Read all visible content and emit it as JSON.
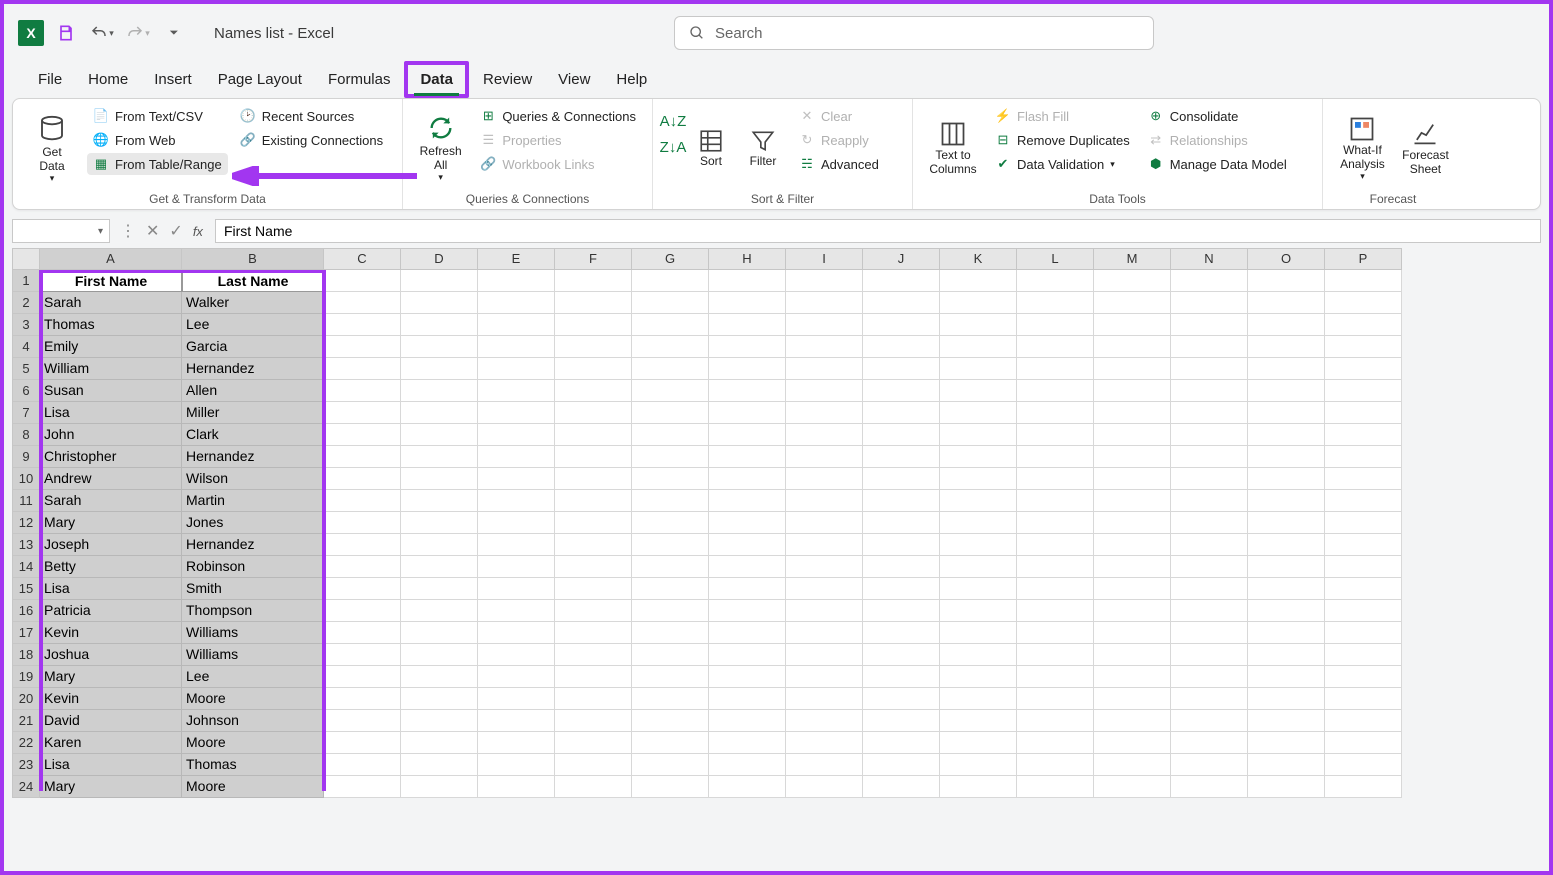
{
  "title": "Names list  -  Excel",
  "search_placeholder": "Search",
  "tabs": [
    "File",
    "Home",
    "Insert",
    "Page Layout",
    "Formulas",
    "Data",
    "Review",
    "View",
    "Help"
  ],
  "active_tab": "Data",
  "ribbon": {
    "get_transform": {
      "label": "Get & Transform Data",
      "get_data": "Get\nData",
      "from_text": "From Text/CSV",
      "from_web": "From Web",
      "from_table": "From Table/Range",
      "recent": "Recent Sources",
      "existing": "Existing Connections"
    },
    "queries": {
      "label": "Queries & Connections",
      "refresh": "Refresh\nAll",
      "qc": "Queries & Connections",
      "props": "Properties",
      "links": "Workbook Links"
    },
    "sortfilter": {
      "label": "Sort & Filter",
      "sort": "Sort",
      "filter": "Filter",
      "clear": "Clear",
      "reapply": "Reapply",
      "advanced": "Advanced"
    },
    "datatools": {
      "label": "Data Tools",
      "ttc": "Text to\nColumns",
      "flash": "Flash Fill",
      "dup": "Remove Duplicates",
      "valid": "Data Validation",
      "consol": "Consolidate",
      "rel": "Relationships",
      "mdm": "Manage Data Model"
    },
    "forecast": {
      "label": "Forecast",
      "whatif": "What-If\nAnalysis",
      "sheet": "Forecast\nSheet"
    }
  },
  "formula_bar_value": "First Name",
  "columns": [
    "A",
    "B",
    "C",
    "D",
    "E",
    "F",
    "G",
    "H",
    "I",
    "J",
    "K",
    "L",
    "M",
    "N",
    "O",
    "P"
  ],
  "col_widths": {
    "A": 142,
    "B": 142
  },
  "data_headers": [
    "First Name",
    "Last Name"
  ],
  "rows": [
    [
      "Sarah",
      "Walker"
    ],
    [
      "Thomas",
      "Lee"
    ],
    [
      "Emily",
      "Garcia"
    ],
    [
      "William",
      "Hernandez"
    ],
    [
      "Susan",
      "Allen"
    ],
    [
      "Lisa",
      "Miller"
    ],
    [
      "John",
      "Clark"
    ],
    [
      "Christopher",
      "Hernandez"
    ],
    [
      "Andrew",
      "Wilson"
    ],
    [
      "Sarah",
      "Martin"
    ],
    [
      "Mary",
      "Jones"
    ],
    [
      "Joseph",
      "Hernandez"
    ],
    [
      "Betty",
      "Robinson"
    ],
    [
      "Lisa",
      "Smith"
    ],
    [
      "Patricia",
      "Thompson"
    ],
    [
      "Kevin",
      "Williams"
    ],
    [
      "Joshua",
      "Williams"
    ],
    [
      "Mary",
      "Lee"
    ],
    [
      "Kevin",
      "Moore"
    ],
    [
      "David",
      "Johnson"
    ],
    [
      "Karen",
      "Moore"
    ],
    [
      "Lisa",
      "Thomas"
    ],
    [
      "Mary",
      "Moore"
    ]
  ],
  "total_visible_rows": 24,
  "colors": {
    "accent": "#a236f0",
    "excel_green": "#107c41",
    "sel_grey": "#cfcfcf"
  }
}
